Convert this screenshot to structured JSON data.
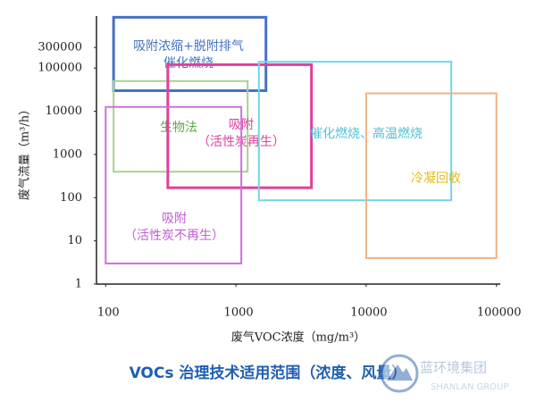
{
  "chart_data": {
    "type": "range-box",
    "y_label": "废气流量（m³/h）",
    "x_label": "废气VOC浓度（mg/m³）",
    "title": "VOCs 治理技术适用范围（浓度、风量）",
    "watermark": [
      "蓝环境集团",
      "SHANLAN GROUP"
    ],
    "x_log": true,
    "y_log": true,
    "xlim": [
      85,
      107000
    ],
    "ylim": [
      1,
      1600000
    ],
    "xticks": [
      100,
      1000,
      10000,
      100000
    ],
    "yticks": [
      1,
      10,
      100,
      1000,
      10000,
      100000,
      300000
    ],
    "series": [
      {
        "name": [
          "吸附浓缩+脱附排气",
          "催化燃烧"
        ],
        "color": "#4472c4",
        "label_color": "#4472c4",
        "x": [
          115,
          1700
        ],
        "y": [
          30000,
          1500000
        ]
      },
      {
        "name": [
          "生物法"
        ],
        "color": "#a9d18e",
        "label_color": "#5fa83f",
        "x": [
          115,
          1230
        ],
        "y": [
          400,
          50000
        ]
      },
      {
        "name": [
          "吸附",
          "（活性炭再生）"
        ],
        "color": "#e0409c",
        "label_color": "#e0409c",
        "x": [
          300,
          3800
        ],
        "y": [
          170,
          120000
        ]
      },
      {
        "name": [
          "催化燃烧、高温燃烧"
        ],
        "color": "#6fd6e6",
        "label_color": "#4ec0d8",
        "x": [
          1500,
          45000
        ],
        "y": [
          87,
          140000
        ]
      },
      {
        "name": [
          "冷凝回收"
        ],
        "color": "#f4b183",
        "label_color": "#e8bc10",
        "x": [
          10000,
          100000
        ],
        "y": [
          4,
          26000
        ]
      },
      {
        "name": [
          "吸附",
          "（活性炭不再生）"
        ],
        "color": "#cc6fdc",
        "label_color": "#c35ad6",
        "x": [
          100,
          1100
        ],
        "y": [
          3,
          12600
        ]
      }
    ]
  }
}
